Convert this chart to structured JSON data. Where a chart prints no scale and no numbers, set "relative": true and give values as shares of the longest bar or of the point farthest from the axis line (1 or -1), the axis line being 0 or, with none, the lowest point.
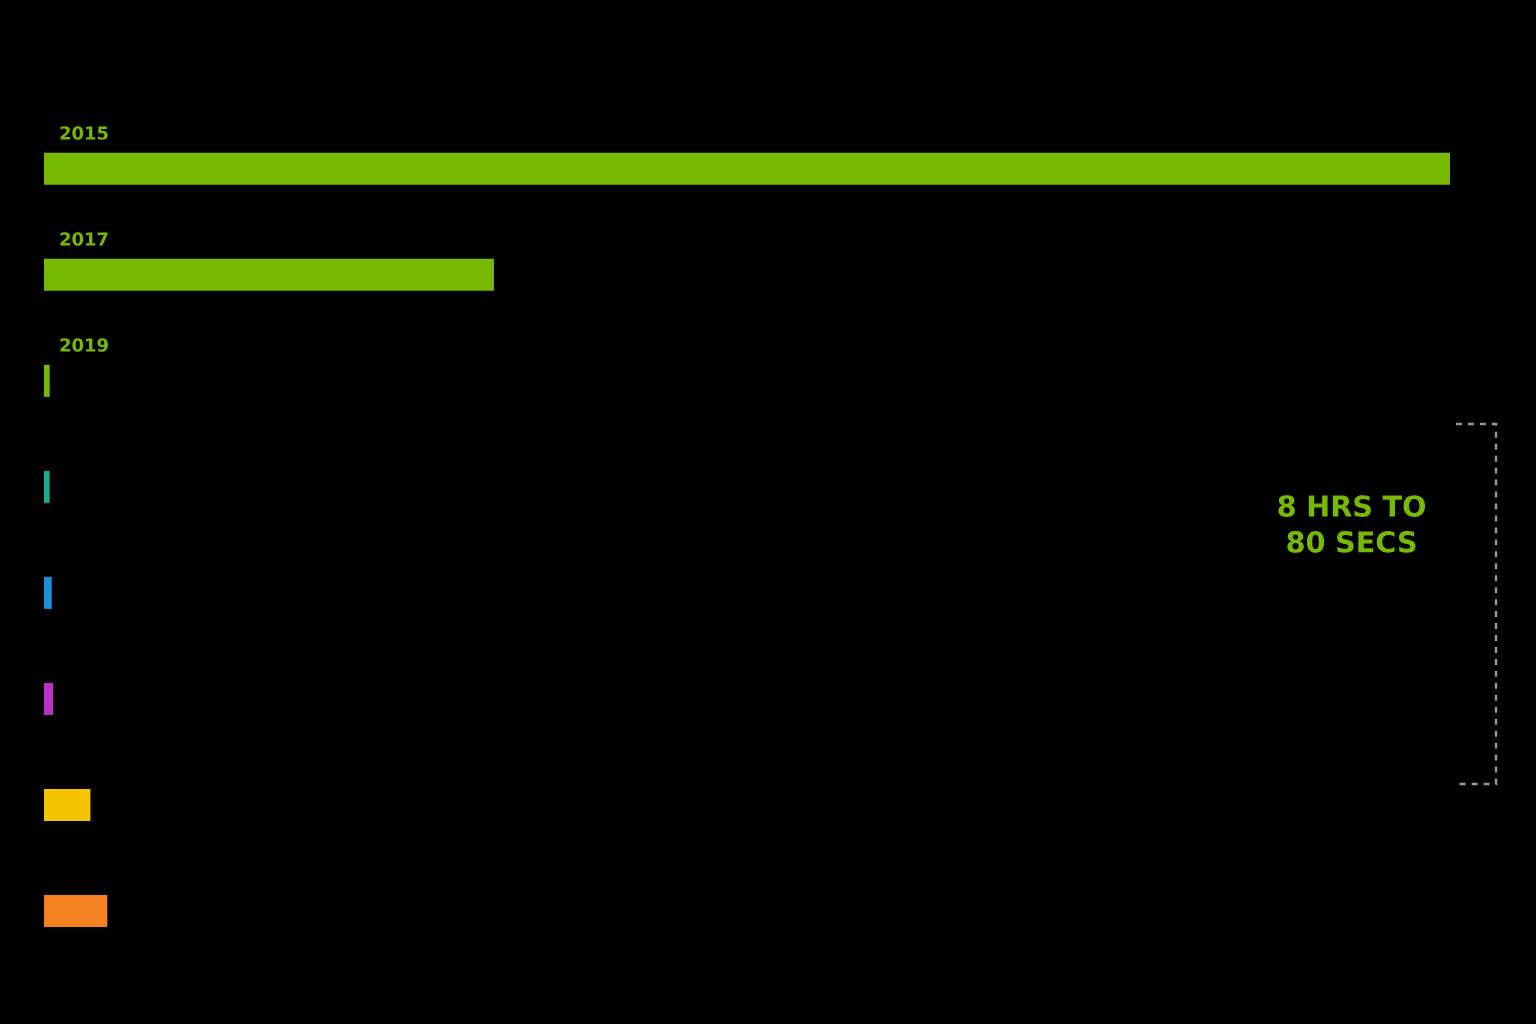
{
  "chart_data": {
    "type": "bar",
    "orientation": "horizontal",
    "relative": true,
    "categories": [
      "2015",
      "2017",
      "2019",
      null,
      null,
      null,
      null,
      null
    ],
    "values": [
      1,
      0.32,
      0.004,
      0.004,
      0.0055,
      0.0064,
      0.033,
      0.045
    ],
    "colors": [
      "#76b900",
      "#76b900",
      "#76b900",
      "#1aa88e",
      "#1a8fd6",
      "#b833c4",
      "#f5c400",
      "#f58220"
    ],
    "annotations": [
      "8 HRS TO 80 SECS"
    ]
  }
}
